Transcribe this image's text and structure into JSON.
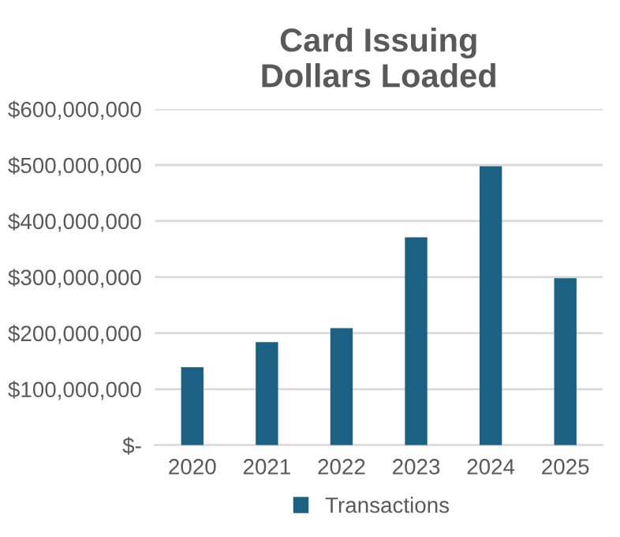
{
  "chart_data": {
    "type": "bar",
    "title": "Card Issuing\nDollars Loaded",
    "categories": [
      "2020",
      "2021",
      "2022",
      "2023",
      "2024",
      "2025"
    ],
    "series": [
      {
        "name": "Transactions",
        "color": "#1a6184",
        "values": [
          139000000,
          184000000,
          209000000,
          371000000,
          498000000,
          298000000
        ]
      }
    ],
    "ylim": [
      0,
      600000000
    ],
    "yticks": [
      {
        "value": 0,
        "label": "$-"
      },
      {
        "value": 100000000,
        "label": "$100,000,000"
      },
      {
        "value": 200000000,
        "label": "$200,000,000"
      },
      {
        "value": 300000000,
        "label": "$300,000,000"
      },
      {
        "value": 400000000,
        "label": "$400,000,000"
      },
      {
        "value": 500000000,
        "label": "$500,000,000"
      },
      {
        "value": 600000000,
        "label": "$600,000,000"
      }
    ],
    "grid": "y",
    "legend": "bottom"
  }
}
